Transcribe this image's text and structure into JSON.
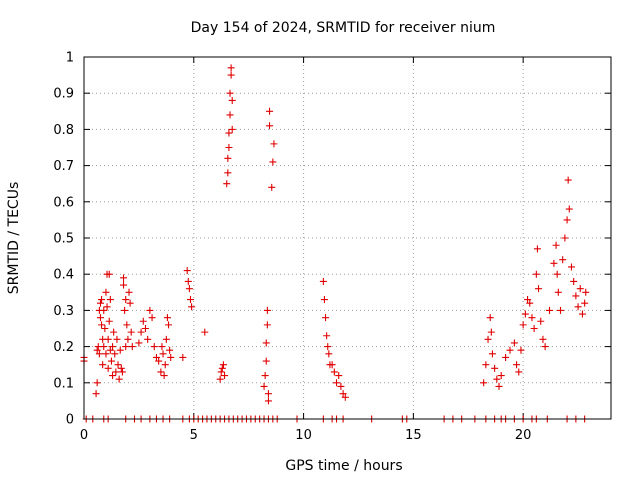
{
  "chart_data": {
    "type": "scatter",
    "title": "Day 154 of 2024, SRMTID for receiver nium",
    "xlabel": "GPS time / hours",
    "ylabel": "SRMTID / TECUs",
    "xlim": [
      0,
      24
    ],
    "ylim": [
      0,
      1
    ],
    "xticks": [
      0,
      5,
      10,
      15,
      20
    ],
    "xtick_labels": [
      "0",
      "5",
      "10",
      "15",
      "20"
    ],
    "yticks": [
      0,
      0.1,
      0.2,
      0.3,
      0.4,
      0.5,
      0.6,
      0.7,
      0.8,
      0.9,
      1
    ],
    "ytick_labels": [
      "0",
      "0.1",
      "0.2",
      "0.3",
      "0.4",
      "0.5",
      "0.6",
      "0.7",
      "0.8",
      "0.9",
      "1"
    ],
    "grid": true,
    "marker": "+",
    "color": "#e00000",
    "series": [
      {
        "name": "SRMTID",
        "points": [
          [
            0.0,
            0.17
          ],
          [
            0.0,
            0.16
          ],
          [
            0.55,
            0.07
          ],
          [
            0.6,
            0.1
          ],
          [
            0.6,
            0.19
          ],
          [
            0.65,
            0.2
          ],
          [
            0.7,
            0.18
          ],
          [
            0.7,
            0.3
          ],
          [
            0.75,
            0.28
          ],
          [
            0.75,
            0.32
          ],
          [
            0.8,
            0.33
          ],
          [
            0.8,
            0.26
          ],
          [
            0.85,
            0.22
          ],
          [
            0.85,
            0.15
          ],
          [
            0.9,
            0.3
          ],
          [
            0.9,
            0.2
          ],
          [
            0.95,
            0.25
          ],
          [
            1.0,
            0.35
          ],
          [
            1.0,
            0.18
          ],
          [
            1.05,
            0.4
          ],
          [
            1.05,
            0.31
          ],
          [
            1.1,
            0.22
          ],
          [
            1.1,
            0.14
          ],
          [
            1.15,
            0.27
          ],
          [
            1.15,
            0.4
          ],
          [
            1.2,
            0.19
          ],
          [
            1.2,
            0.33
          ],
          [
            1.25,
            0.16
          ],
          [
            1.3,
            0.2
          ],
          [
            1.3,
            0.12
          ],
          [
            1.35,
            0.24
          ],
          [
            1.4,
            0.18
          ],
          [
            1.45,
            0.13
          ],
          [
            1.5,
            0.22
          ],
          [
            1.55,
            0.15
          ],
          [
            1.6,
            0.11
          ],
          [
            1.65,
            0.19
          ],
          [
            1.7,
            0.14
          ],
          [
            1.75,
            0.13
          ],
          [
            1.8,
            0.39
          ],
          [
            1.8,
            0.37
          ],
          [
            1.85,
            0.3
          ],
          [
            1.9,
            0.33
          ],
          [
            1.9,
            0.2
          ],
          [
            1.95,
            0.26
          ],
          [
            2.0,
            0.22
          ],
          [
            2.05,
            0.35
          ],
          [
            2.1,
            0.32
          ],
          [
            2.15,
            0.24
          ],
          [
            2.2,
            0.2
          ],
          [
            2.5,
            0.21
          ],
          [
            2.6,
            0.24
          ],
          [
            2.7,
            0.27
          ],
          [
            2.8,
            0.25
          ],
          [
            2.9,
            0.22
          ],
          [
            3.0,
            0.3
          ],
          [
            3.1,
            0.28
          ],
          [
            3.2,
            0.2
          ],
          [
            3.3,
            0.17
          ],
          [
            3.4,
            0.16
          ],
          [
            3.5,
            0.13
          ],
          [
            3.55,
            0.2
          ],
          [
            3.6,
            0.18
          ],
          [
            3.65,
            0.12
          ],
          [
            3.7,
            0.15
          ],
          [
            3.75,
            0.22
          ],
          [
            3.8,
            0.28
          ],
          [
            3.85,
            0.26
          ],
          [
            3.9,
            0.19
          ],
          [
            3.95,
            0.17
          ],
          [
            4.5,
            0.17
          ],
          [
            4.7,
            0.41
          ],
          [
            4.75,
            0.38
          ],
          [
            4.8,
            0.36
          ],
          [
            4.85,
            0.33
          ],
          [
            4.9,
            0.31
          ],
          [
            5.5,
            0.24
          ],
          [
            6.2,
            0.11
          ],
          [
            6.25,
            0.13
          ],
          [
            6.3,
            0.14
          ],
          [
            6.35,
            0.15
          ],
          [
            6.4,
            0.12
          ],
          [
            6.5,
            0.65
          ],
          [
            6.55,
            0.68
          ],
          [
            6.55,
            0.72
          ],
          [
            6.6,
            0.75
          ],
          [
            6.6,
            0.79
          ],
          [
            6.65,
            0.84
          ],
          [
            6.65,
            0.9
          ],
          [
            6.7,
            0.95
          ],
          [
            6.7,
            0.97
          ],
          [
            6.75,
            0.88
          ],
          [
            6.75,
            0.8
          ],
          [
            8.2,
            0.09
          ],
          [
            8.25,
            0.12
          ],
          [
            8.3,
            0.16
          ],
          [
            8.3,
            0.21
          ],
          [
            8.35,
            0.26
          ],
          [
            8.35,
            0.3
          ],
          [
            8.4,
            0.05
          ],
          [
            8.4,
            0.07
          ],
          [
            8.45,
            0.85
          ],
          [
            8.45,
            0.81
          ],
          [
            8.55,
            0.64
          ],
          [
            8.6,
            0.71
          ],
          [
            8.65,
            0.76
          ],
          [
            10.9,
            0.38
          ],
          [
            10.95,
            0.33
          ],
          [
            11.0,
            0.28
          ],
          [
            11.05,
            0.23
          ],
          [
            11.1,
            0.2
          ],
          [
            11.15,
            0.18
          ],
          [
            11.2,
            0.15
          ],
          [
            11.3,
            0.15
          ],
          [
            11.4,
            0.13
          ],
          [
            11.5,
            0.1
          ],
          [
            11.6,
            0.12
          ],
          [
            11.7,
            0.09
          ],
          [
            11.8,
            0.07
          ],
          [
            11.9,
            0.06
          ],
          [
            18.2,
            0.1
          ],
          [
            18.3,
            0.15
          ],
          [
            18.4,
            0.22
          ],
          [
            18.5,
            0.28
          ],
          [
            18.55,
            0.24
          ],
          [
            18.6,
            0.18
          ],
          [
            18.7,
            0.14
          ],
          [
            18.8,
            0.11
          ],
          [
            18.9,
            0.09
          ],
          [
            19.0,
            0.12
          ],
          [
            19.2,
            0.17
          ],
          [
            19.4,
            0.19
          ],
          [
            19.6,
            0.21
          ],
          [
            19.7,
            0.15
          ],
          [
            19.8,
            0.13
          ],
          [
            19.9,
            0.19
          ],
          [
            20.0,
            0.26
          ],
          [
            20.1,
            0.29
          ],
          [
            20.2,
            0.33
          ],
          [
            20.3,
            0.32
          ],
          [
            20.4,
            0.28
          ],
          [
            20.5,
            0.25
          ],
          [
            20.6,
            0.4
          ],
          [
            20.65,
            0.47
          ],
          [
            20.7,
            0.36
          ],
          [
            20.8,
            0.27
          ],
          [
            20.9,
            0.22
          ],
          [
            21.0,
            0.2
          ],
          [
            21.2,
            0.3
          ],
          [
            21.4,
            0.43
          ],
          [
            21.5,
            0.48
          ],
          [
            21.55,
            0.4
          ],
          [
            21.6,
            0.35
          ],
          [
            21.7,
            0.3
          ],
          [
            21.8,
            0.44
          ],
          [
            21.9,
            0.5
          ],
          [
            22.0,
            0.55
          ],
          [
            22.05,
            0.66
          ],
          [
            22.1,
            0.58
          ],
          [
            22.2,
            0.42
          ],
          [
            22.3,
            0.38
          ],
          [
            22.4,
            0.34
          ],
          [
            22.5,
            0.31
          ],
          [
            22.6,
            0.36
          ],
          [
            22.7,
            0.29
          ],
          [
            22.8,
            0.32
          ],
          [
            22.85,
            0.35
          ]
        ]
      }
    ],
    "zero_markers_x": [
      0.1,
      0.4,
      0.9,
      1.1,
      1.9,
      2.3,
      2.6,
      3.0,
      3.3,
      3.6,
      3.9,
      4.5,
      4.8,
      5.0,
      5.2,
      5.4,
      5.6,
      5.8,
      6.0,
      6.2,
      6.4,
      6.6,
      6.8,
      7.0,
      7.2,
      7.4,
      7.6,
      7.8,
      8.0,
      8.2,
      8.4,
      8.6,
      8.8,
      9.7,
      10.9,
      11.3,
      11.5,
      11.8,
      13.1,
      14.5,
      14.7,
      16.4,
      16.8,
      17.2,
      17.8,
      18.3,
      18.7,
      19.0,
      19.2,
      19.6,
      20.0,
      20.4,
      20.6,
      21.1,
      22.0,
      22.4,
      22.8
    ]
  }
}
